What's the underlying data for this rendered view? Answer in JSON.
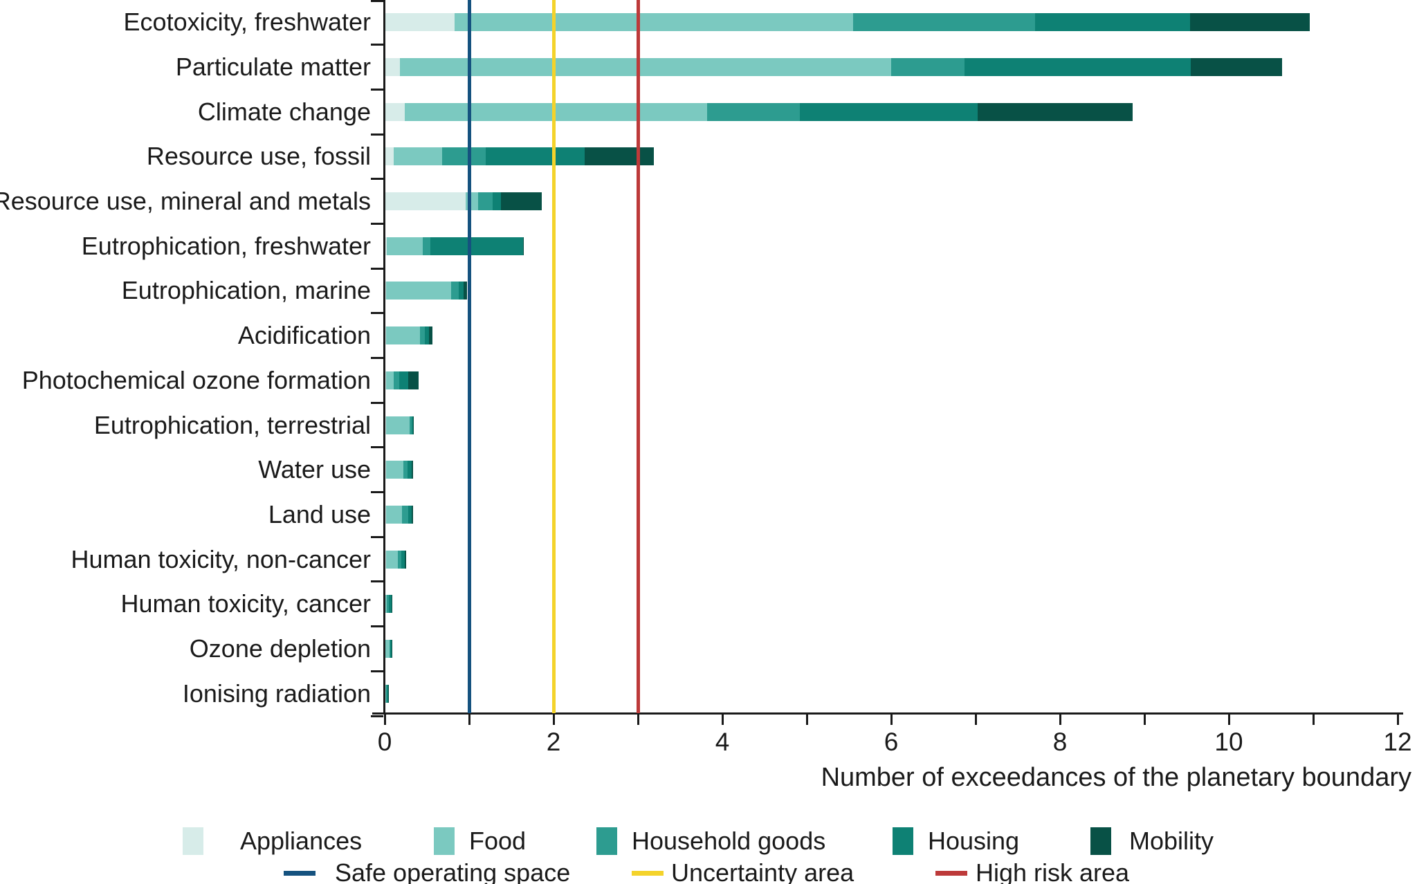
{
  "chart_data": {
    "type": "bar",
    "orientation": "horizontal",
    "stacked": true,
    "xlabel": "Number of exceedances of the planetary boundary",
    "xlim": [
      0,
      12
    ],
    "x_tick_labels": [
      "0",
      "2",
      "4",
      "6",
      "8",
      "10",
      "12"
    ],
    "x_minor_tick_step": 1,
    "grid": "off",
    "legend_position": "bottom",
    "categories": [
      "Ecotoxicity, freshwater",
      "Particulate matter",
      "Climate change",
      "Resource use, fossil",
      "Resource use, mineral and metals",
      "Eutrophication, freshwater",
      "Eutrophication, marine",
      "Acidification",
      "Photochemical ozone formation",
      "Eutrophication, terrestrial",
      "Water use",
      "Land use",
      "Human toxicity, non-cancer",
      "Human toxicity, cancer",
      "Ozone depletion",
      "Ionising radiation"
    ],
    "series": [
      {
        "name": "Appliances",
        "color": "#d7ece9",
        "values": [
          0.82,
          0.17,
          0.23,
          0.1,
          0.95,
          0.02,
          0.01,
          0.01,
          0.01,
          0.01,
          0.01,
          0.01,
          0.01,
          0.0,
          0.0,
          0.0
        ]
      },
      {
        "name": "Food",
        "color": "#7bc9c0",
        "values": [
          4.72,
          5.82,
          3.58,
          0.57,
          0.15,
          0.42,
          0.77,
          0.4,
          0.09,
          0.28,
          0.2,
          0.19,
          0.14,
          0.02,
          0.05,
          0.01
        ]
      },
      {
        "name": "Household goods",
        "color": "#2d9c90",
        "values": [
          2.16,
          0.87,
          1.1,
          0.52,
          0.17,
          0.09,
          0.09,
          0.06,
          0.06,
          0.02,
          0.05,
          0.07,
          0.04,
          0.02,
          0.01,
          0.01
        ]
      },
      {
        "name": "Housing",
        "color": "#0e8174",
        "values": [
          1.83,
          2.68,
          2.11,
          1.17,
          0.1,
          1.1,
          0.06,
          0.05,
          0.11,
          0.02,
          0.05,
          0.04,
          0.04,
          0.03,
          0.01,
          0.01
        ]
      },
      {
        "name": "Mobility",
        "color": "#085146",
        "values": [
          1.42,
          1.08,
          1.83,
          0.82,
          0.48,
          0.01,
          0.04,
          0.04,
          0.12,
          0.01,
          0.02,
          0.02,
          0.02,
          0.01,
          0.01,
          0.01
        ]
      }
    ],
    "totals": [
      10.95,
      10.62,
      8.85,
      3.18,
      1.85,
      1.64,
      0.97,
      0.56,
      0.39,
      0.34,
      0.33,
      0.33,
      0.25,
      0.08,
      0.08,
      0.04
    ],
    "reference_lines": [
      {
        "label": "Safe operating space",
        "x": 1,
        "color": "#15527f"
      },
      {
        "label": "Uncertainty area",
        "x": 2,
        "color": "#f4d32b"
      },
      {
        "label": "High risk area",
        "x": 3,
        "color": "#bd3a3a"
      }
    ]
  }
}
